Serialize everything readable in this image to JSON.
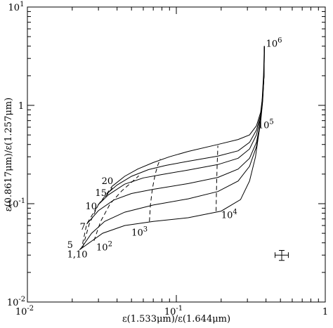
{
  "chart_data": {
    "type": "line",
    "title": "",
    "xlabel": "ε(1.533μm)/ε(1.644μm)",
    "ylabel": "ε(0.8617μm)/ε(1.257μm)",
    "xscale": "log",
    "yscale": "log",
    "xlim": [
      0.01,
      1
    ],
    "ylim": [
      0.01,
      10
    ],
    "grid": false,
    "legend": "none",
    "x_ticks": [
      {
        "value": 0.01,
        "base": "10",
        "exp": "-2"
      },
      {
        "value": 0.1,
        "base": "10",
        "exp": "-1"
      },
      {
        "value": 1,
        "base": "1",
        "exp": ""
      }
    ],
    "y_ticks": [
      {
        "value": 0.01,
        "base": "10",
        "exp": "-2"
      },
      {
        "value": 0.1,
        "base": "10",
        "exp": "-1"
      },
      {
        "value": 1,
        "base": "1",
        "exp": ""
      },
      {
        "value": 10,
        "base": "10",
        "exp": "1"
      }
    ],
    "solid_curves": [
      {
        "points": [
          [
            0.0224,
            0.034
          ],
          [
            0.026,
            0.04
          ],
          [
            0.032,
            0.05
          ],
          [
            0.045,
            0.06
          ],
          [
            0.07,
            0.066
          ],
          [
            0.12,
            0.072
          ],
          [
            0.2,
            0.084
          ],
          [
            0.27,
            0.11
          ],
          [
            0.31,
            0.17
          ],
          [
            0.34,
            0.3
          ],
          [
            0.36,
            0.55
          ],
          [
            0.375,
            1.0
          ],
          [
            0.385,
            2.0
          ],
          [
            0.39,
            4.0
          ]
        ]
      },
      {
        "points": [
          [
            0.0232,
            0.036
          ],
          [
            0.027,
            0.05
          ],
          [
            0.033,
            0.066
          ],
          [
            0.045,
            0.082
          ],
          [
            0.07,
            0.097
          ],
          [
            0.12,
            0.112
          ],
          [
            0.19,
            0.133
          ],
          [
            0.26,
            0.17
          ],
          [
            0.31,
            0.24
          ],
          [
            0.345,
            0.38
          ],
          [
            0.365,
            0.62
          ],
          [
            0.378,
            1.05
          ],
          [
            0.387,
            2.0
          ],
          [
            0.39,
            4.0
          ]
        ]
      },
      {
        "points": [
          [
            0.025,
            0.062
          ],
          [
            0.03,
            0.085
          ],
          [
            0.038,
            0.109
          ],
          [
            0.05,
            0.127
          ],
          [
            0.07,
            0.14
          ],
          [
            0.12,
            0.16
          ],
          [
            0.19,
            0.185
          ],
          [
            0.26,
            0.225
          ],
          [
            0.31,
            0.29
          ],
          [
            0.345,
            0.42
          ],
          [
            0.368,
            0.68
          ],
          [
            0.38,
            1.1
          ],
          [
            0.388,
            2.0
          ],
          [
            0.39,
            4.0
          ]
        ]
      },
      {
        "points": [
          [
            0.03,
            0.098
          ],
          [
            0.035,
            0.123
          ],
          [
            0.045,
            0.158
          ],
          [
            0.06,
            0.183
          ],
          [
            0.08,
            0.198
          ],
          [
            0.12,
            0.22
          ],
          [
            0.19,
            0.25
          ],
          [
            0.26,
            0.29
          ],
          [
            0.31,
            0.36
          ],
          [
            0.345,
            0.5
          ],
          [
            0.368,
            0.75
          ],
          [
            0.38,
            1.15
          ],
          [
            0.388,
            2.0
          ],
          [
            0.39,
            4.0
          ]
        ]
      },
      {
        "points": [
          [
            0.034,
            0.125
          ],
          [
            0.04,
            0.155
          ],
          [
            0.05,
            0.19
          ],
          [
            0.065,
            0.222
          ],
          [
            0.085,
            0.245
          ],
          [
            0.12,
            0.27
          ],
          [
            0.19,
            0.305
          ],
          [
            0.26,
            0.345
          ],
          [
            0.31,
            0.42
          ],
          [
            0.345,
            0.56
          ],
          [
            0.368,
            0.8
          ],
          [
            0.38,
            1.2
          ],
          [
            0.388,
            2.0
          ],
          [
            0.39,
            4.0
          ]
        ]
      },
      {
        "points": [
          [
            0.037,
            0.15
          ],
          [
            0.045,
            0.19
          ],
          [
            0.055,
            0.225
          ],
          [
            0.07,
            0.262
          ],
          [
            0.09,
            0.3
          ],
          [
            0.12,
            0.34
          ],
          [
            0.19,
            0.4
          ],
          [
            0.26,
            0.45
          ],
          [
            0.31,
            0.5
          ],
          [
            0.345,
            0.62
          ],
          [
            0.368,
            0.85
          ],
          [
            0.38,
            1.25
          ],
          [
            0.388,
            2.0
          ],
          [
            0.39,
            4.0
          ]
        ]
      }
    ],
    "dashed_curves": [
      {
        "points": [
          [
            0.0224,
            0.034
          ],
          [
            0.0232,
            0.036
          ],
          [
            0.025,
            0.062
          ],
          [
            0.03,
            0.098
          ],
          [
            0.034,
            0.125
          ],
          [
            0.037,
            0.15
          ]
        ]
      },
      {
        "points": [
          [
            0.0235,
            0.036
          ],
          [
            0.0245,
            0.045
          ],
          [
            0.026,
            0.062
          ],
          [
            0.03,
            0.098
          ],
          [
            0.035,
            0.128
          ],
          [
            0.038,
            0.152
          ]
        ]
      },
      {
        "points": [
          [
            0.028,
            0.042
          ],
          [
            0.031,
            0.066
          ],
          [
            0.036,
            0.1
          ],
          [
            0.043,
            0.135
          ],
          [
            0.05,
            0.165
          ],
          [
            0.056,
            0.192
          ]
        ]
      },
      {
        "points": [
          [
            0.066,
            0.066
          ],
          [
            0.067,
            0.097
          ],
          [
            0.069,
            0.14
          ],
          [
            0.072,
            0.198
          ],
          [
            0.075,
            0.245
          ],
          [
            0.078,
            0.285
          ]
        ]
      },
      {
        "points": [
          [
            0.185,
            0.084
          ],
          [
            0.186,
            0.133
          ],
          [
            0.187,
            0.185
          ],
          [
            0.188,
            0.25
          ],
          [
            0.189,
            0.305
          ],
          [
            0.19,
            0.39
          ]
        ]
      }
    ],
    "curve_labels": [
      {
        "base": "1,10",
        "exp": "",
        "x": 0.0185,
        "y": 0.0285
      },
      {
        "base": "5",
        "exp": "",
        "x": 0.0185,
        "y": 0.0355
      },
      {
        "base": "10",
        "exp": "2",
        "x": 0.029,
        "y": 0.0335
      },
      {
        "base": "7",
        "exp": "",
        "x": 0.0225,
        "y": 0.0545
      },
      {
        "base": "10",
        "exp": "",
        "x": 0.0245,
        "y": 0.0875
      },
      {
        "base": "15",
        "exp": "",
        "x": 0.0285,
        "y": 0.12
      },
      {
        "base": "20",
        "exp": "",
        "x": 0.0315,
        "y": 0.158
      },
      {
        "base": "10",
        "exp": "3",
        "x": 0.05,
        "y": 0.0475
      },
      {
        "base": "10",
        "exp": "4",
        "x": 0.2,
        "y": 0.0715
      },
      {
        "base": "10",
        "exp": "5",
        "x": 0.352,
        "y": 0.585
      },
      {
        "base": "10",
        "exp": "6",
        "x": 0.4,
        "y": 3.95
      }
    ],
    "error_bar": {
      "x": 0.51,
      "y": 0.03,
      "x_low": 0.46,
      "x_high": 0.565,
      "y_low": 0.0265,
      "y_high": 0.0335
    }
  }
}
